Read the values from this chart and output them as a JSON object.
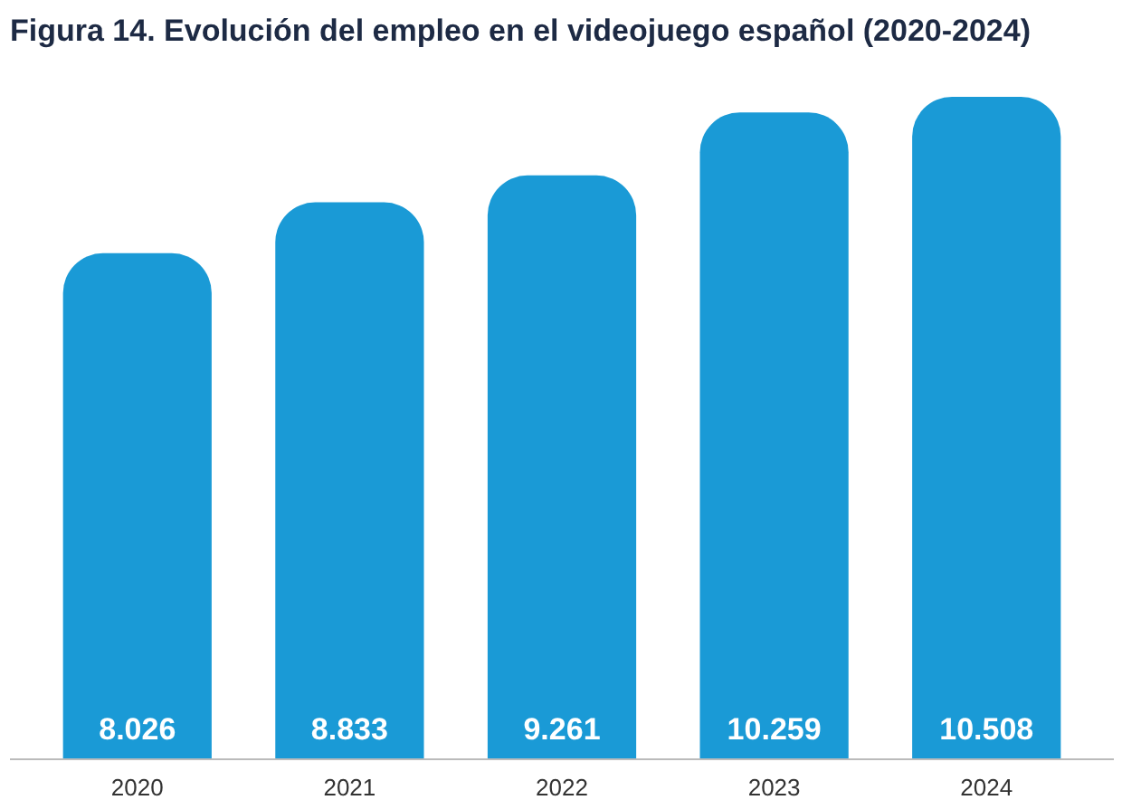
{
  "chart_data": {
    "type": "bar",
    "title": "Figura 14. Evolución del empleo en el videojuego español (2020-2024)",
    "categories": [
      "2020",
      "2021",
      "2022",
      "2023",
      "2024"
    ],
    "values": [
      8026,
      8833,
      9261,
      10259,
      10508
    ],
    "value_labels": [
      "8.026",
      "8.833",
      "9.261",
      "10.259",
      "10.508"
    ],
    "color": "#1a9ad6"
  }
}
